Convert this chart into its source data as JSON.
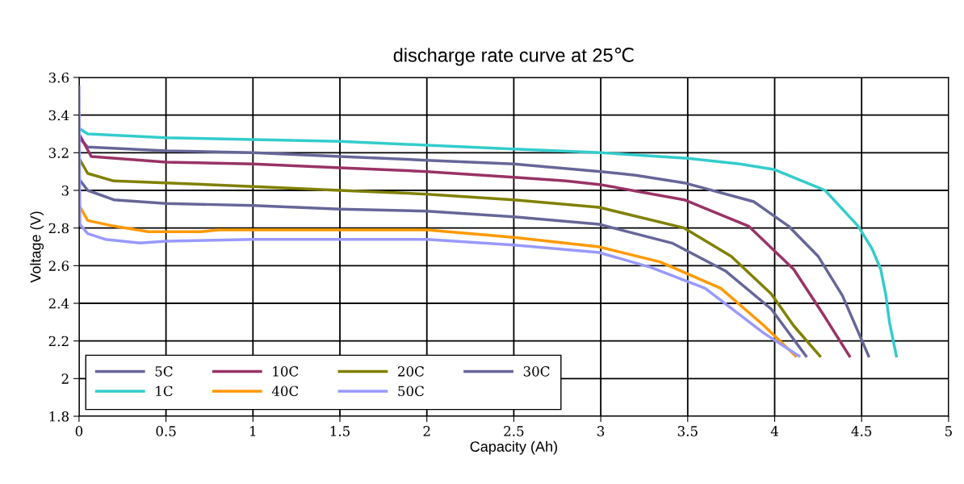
{
  "chart_data": {
    "type": "line",
    "title": "discharge rate curve at 25℃",
    "xlabel": "Capacity (Ah)",
    "ylabel": "Voltage (V)",
    "xlim": [
      0,
      5
    ],
    "ylim": [
      1.8,
      3.6
    ],
    "xticks": [
      0,
      0.5,
      1,
      1.5,
      2,
      2.5,
      3,
      3.5,
      4,
      4.5,
      5
    ],
    "yticks": [
      1.8,
      2,
      2.2,
      2.4,
      2.6,
      2.8,
      3,
      3.2,
      3.4,
      3.6
    ],
    "grid": true,
    "legend": "bottom left",
    "marker": "none",
    "line_style": "solid",
    "series": [
      {
        "name": "5C",
        "color": "#666699",
        "x": [
          0,
          0.05,
          0.5,
          1,
          1.5,
          2,
          2.5,
          3,
          3.2,
          3.48,
          3.88,
          4.08,
          4.25,
          4.39,
          4.47,
          4.54
        ],
        "values": [
          3.28,
          3.23,
          3.21,
          3.2,
          3.18,
          3.16,
          3.14,
          3.1,
          3.08,
          3.04,
          2.94,
          2.81,
          2.65,
          2.44,
          2.27,
          2.12
        ]
      },
      {
        "name": "10C",
        "color": "#993366",
        "x": [
          0,
          0.07,
          0.5,
          1,
          1.5,
          2,
          2.5,
          2.8,
          3.0,
          3.48,
          3.85,
          4.11,
          4.28,
          4.43
        ],
        "values": [
          3.3,
          3.18,
          3.15,
          3.14,
          3.12,
          3.1,
          3.07,
          3.05,
          3.03,
          2.95,
          2.81,
          2.58,
          2.34,
          2.12
        ]
      },
      {
        "name": "20C",
        "color": "#808000",
        "x": [
          0,
          0.05,
          0.2,
          0.5,
          1,
          1.5,
          2,
          2.5,
          2.99,
          3.48,
          3.75,
          3.98,
          4.11,
          4.26
        ],
        "values": [
          3.17,
          3.09,
          3.05,
          3.04,
          3.02,
          3.0,
          2.98,
          2.95,
          2.91,
          2.8,
          2.65,
          2.45,
          2.28,
          2.12
        ]
      },
      {
        "name": "30C",
        "color": "#666699",
        "x": [
          0,
          0.05,
          0.2,
          0.5,
          1,
          1.5,
          2,
          2.5,
          2.99,
          3.41,
          3.72,
          3.98,
          4.18
        ],
        "values": [
          3.06,
          3.0,
          2.95,
          2.93,
          2.92,
          2.9,
          2.89,
          2.86,
          2.82,
          2.72,
          2.57,
          2.37,
          2.12
        ]
      },
      {
        "name": "1C",
        "color": "#33cccc",
        "x": [
          0,
          0.05,
          0.5,
          1,
          1.5,
          2,
          2.5,
          3,
          3.5,
          3.8,
          4.0,
          4.29,
          4.48,
          4.56,
          4.61,
          4.64,
          4.66,
          4.7
        ],
        "values": [
          3.33,
          3.3,
          3.28,
          3.27,
          3.26,
          3.24,
          3.22,
          3.2,
          3.17,
          3.14,
          3.11,
          3.0,
          2.81,
          2.69,
          2.58,
          2.44,
          2.3,
          2.12
        ]
      },
      {
        "name": "40C",
        "color": "#ff9900",
        "x": [
          0,
          0.05,
          0.2,
          0.4,
          0.7,
          0.8,
          1,
          2,
          2.5,
          2.99,
          3.34,
          3.69,
          3.94,
          4.12
        ],
        "values": [
          2.92,
          2.84,
          2.81,
          2.78,
          2.78,
          2.79,
          2.79,
          2.79,
          2.75,
          2.7,
          2.62,
          2.48,
          2.28,
          2.12
        ]
      },
      {
        "name": "50C",
        "color": "#9999ff",
        "x": [
          0,
          0.005,
          0.05,
          0.15,
          0.35,
          0.5,
          1,
          2,
          2.5,
          2.99,
          3.29,
          3.6,
          3.94,
          4.14
        ],
        "values": [
          3.55,
          2.82,
          2.77,
          2.74,
          2.72,
          2.73,
          2.74,
          2.74,
          2.71,
          2.67,
          2.59,
          2.48,
          2.24,
          2.12
        ]
      }
    ]
  }
}
